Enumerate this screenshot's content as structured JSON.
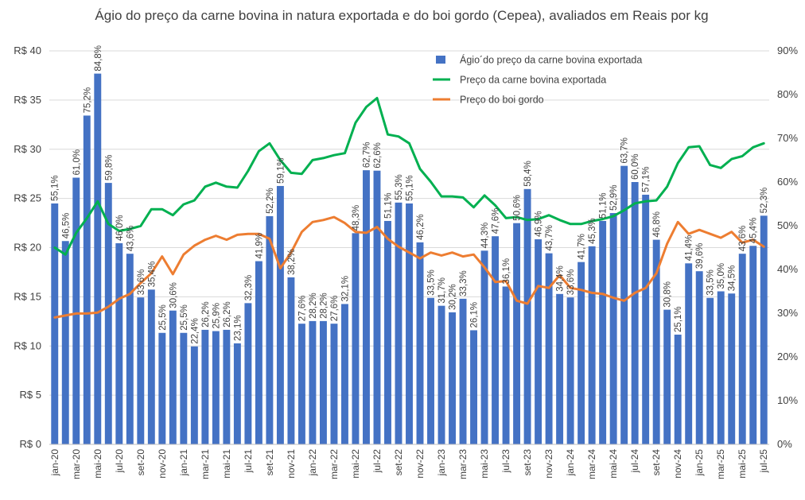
{
  "chart_data": {
    "type": "bar",
    "title": "Ágio do preço da carne bovina in natura exportada e do boi gordo (Cepea), avaliados em Reais por kg",
    "y_left": {
      "min": 0,
      "max": 40,
      "step": 5,
      "prefix": "R$ "
    },
    "y_right": {
      "min": 0,
      "max": 90,
      "step": 10,
      "suffix": "%"
    },
    "categories": [
      "jan-20",
      "fev-20",
      "mar-20",
      "abr-20",
      "mai-20",
      "jun-20",
      "jul-20",
      "ago-20",
      "set-20",
      "out-20",
      "nov-20",
      "dez-20",
      "jan-21",
      "fev-21",
      "mar-21",
      "abr-21",
      "mai-21",
      "jun-21",
      "jul-21",
      "ago-21",
      "set-21",
      "out-21",
      "nov-21",
      "dez-21",
      "jan-22",
      "fev-22",
      "mar-22",
      "abr-22",
      "mai-22",
      "jun-22",
      "jul-22",
      "ago-22",
      "set-22",
      "out-22",
      "nov-22",
      "dez-22",
      "jan-23",
      "fev-23",
      "mar-23",
      "abr-23",
      "mai-23",
      "jun-23",
      "jul-23",
      "ago-23",
      "set-23",
      "out-23",
      "nov-23",
      "dez-23",
      "jan-24",
      "fev-24",
      "mar-24",
      "abr-24",
      "mai-24",
      "jun-24",
      "jul-24",
      "ago-24",
      "set-24",
      "out-24",
      "nov-24",
      "dez-24",
      "jan-25",
      "fev-25",
      "mar-25",
      "abr-25",
      "mai-25",
      "jun-25",
      "jul-25"
    ],
    "x_tick_labels": [
      "jan-20",
      "mar-20",
      "mai-20",
      "jul-20",
      "set-20",
      "nov-20",
      "jan-21",
      "mar-21",
      "mai-21",
      "jul-21",
      "set-21",
      "nov-21",
      "jan-22",
      "mar-22",
      "mai-22",
      "jul-22",
      "set-22",
      "nov-22",
      "jan-23",
      "mar-23",
      "mai-23",
      "jul-23",
      "set-23",
      "nov-23",
      "jan-24",
      "mar-24",
      "mai-24",
      "jul-24",
      "set-24",
      "nov-24",
      "jan-25",
      "mar-25",
      "mai-25",
      "jul-25"
    ],
    "legend": {
      "position": "top-center"
    },
    "series": [
      {
        "name": "Ágio´do preço da carne bovina exportada",
        "kind": "bar",
        "axis": "right",
        "color": "#4472C4",
        "values": [
          55.1,
          46.5,
          61.0,
          75.2,
          84.8,
          59.8,
          46.0,
          43.6,
          33.6,
          35.4,
          25.5,
          30.6,
          25.5,
          22.4,
          26.2,
          25.9,
          26.2,
          23.1,
          32.3,
          41.9,
          52.2,
          59.1,
          38.2,
          27.6,
          28.2,
          28.2,
          27.6,
          32.1,
          48.3,
          62.7,
          62.6,
          51.1,
          55.3,
          55.1,
          46.2,
          33.5,
          31.7,
          30.2,
          33.3,
          26.1,
          44.3,
          47.6,
          36.1,
          50.6,
          58.4,
          46.9,
          43.7,
          34.4,
          33.6,
          41.7,
          45.3,
          51.1,
          52.9,
          63.7,
          60.0,
          57.1,
          46.8,
          30.8,
          25.1,
          41.4,
          39.6,
          33.5,
          35.0,
          34.5,
          43.6,
          45.4,
          52.3
        ],
        "labels": [
          "55,1%",
          "46,5%",
          "61,0%",
          "75,2%",
          "84,8%",
          "59,8%",
          "46,0%",
          "43,6%",
          "33,6%",
          "35,4%",
          "25,5%",
          "30,6%",
          "25,5%",
          "22,4%",
          "26,2%",
          "25,9%",
          "26,2%",
          "23,1%",
          "32,3%",
          "41,9%",
          "52,2%",
          "59,1%",
          "38,2%",
          "27,6%",
          "28,2%",
          "28,2%",
          "27,6%",
          "32,1%",
          "48,3%",
          "62,7%",
          "62,6%",
          "51,1%",
          "55,3%",
          "55,1%",
          "46,2%",
          "33,5%",
          "31,7%",
          "30,2%",
          "33,3%",
          "26,1%",
          "44,3%",
          "47,6%",
          "36,1%",
          "50,6%",
          "58,4%",
          "46,9%",
          "43,7%",
          "34,4%",
          "33,6%",
          "41,7%",
          "45,3%",
          "51,1%",
          "52,9%",
          "63,7%",
          "60,0%",
          "57,1%",
          "46,8%",
          "30,8%",
          "25,1%",
          "41,4%",
          "39,6%",
          "33,5%",
          "35,0%",
          "34,5%",
          "43,6%",
          "45,4%",
          "52,3%"
        ]
      },
      {
        "name": "Preço da carne bovina exportada",
        "kind": "line",
        "axis": "left",
        "color": "#00B050",
        "values": [
          20.0,
          19.3,
          21.5,
          23.0,
          24.7,
          22.4,
          21.7,
          21.9,
          22.2,
          23.9,
          23.9,
          23.3,
          24.4,
          24.8,
          26.2,
          26.6,
          26.2,
          26.1,
          27.8,
          29.8,
          30.6,
          28.9,
          27.6,
          27.5,
          28.9,
          29.1,
          29.4,
          29.6,
          32.7,
          34.3,
          35.2,
          31.5,
          31.3,
          30.6,
          28.0,
          26.7,
          25.2,
          25.2,
          25.1,
          24.1,
          25.3,
          24.3,
          23.0,
          23.1,
          22.8,
          22.9,
          23.3,
          22.8,
          22.4,
          22.4,
          22.7,
          22.9,
          23.2,
          23.8,
          24.5,
          24.7,
          24.8,
          26.2,
          28.6,
          30.2,
          30.3,
          28.4,
          28.1,
          29.0,
          29.3,
          30.2,
          30.6
        ],
        "labels": []
      },
      {
        "name": "Preço do boi gordo",
        "kind": "line",
        "axis": "left",
        "color": "#ED7D31",
        "values": [
          12.9,
          13.1,
          13.3,
          13.3,
          13.4,
          14.0,
          14.8,
          15.3,
          16.4,
          17.4,
          19.1,
          17.3,
          19.3,
          20.2,
          20.8,
          21.2,
          20.8,
          21.3,
          21.4,
          21.4,
          20.9,
          17.9,
          19.5,
          21.6,
          22.6,
          22.8,
          23.1,
          22.5,
          21.6,
          21.5,
          22.1,
          20.9,
          20.1,
          19.5,
          18.9,
          19.5,
          19.2,
          19.5,
          19.1,
          19.3,
          18.0,
          16.5,
          16.6,
          14.6,
          14.3,
          16.1,
          15.9,
          17.2,
          15.9,
          15.7,
          15.4,
          15.3,
          14.9,
          14.6,
          15.4,
          15.9,
          17.4,
          20.4,
          22.6,
          21.4,
          21.8,
          21.4,
          21.0,
          21.6,
          20.5,
          20.8,
          20.1
        ],
        "labels": []
      }
    ]
  }
}
